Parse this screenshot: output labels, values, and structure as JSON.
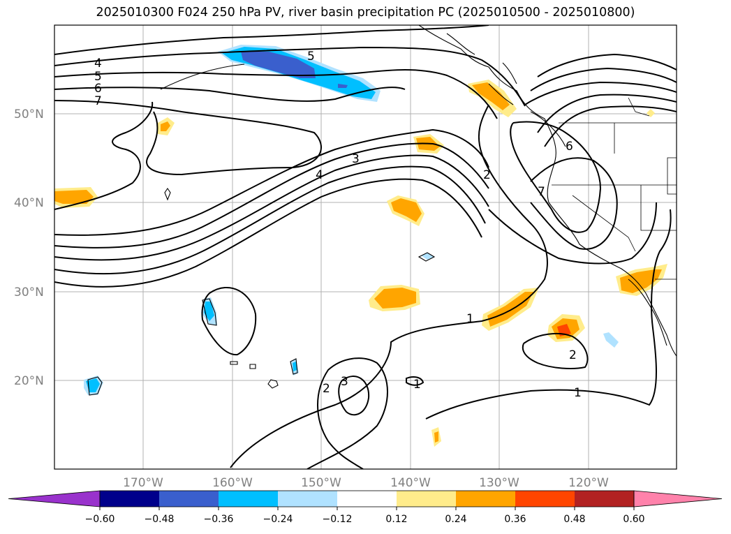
{
  "title": "2025010300 F024 250 hPa PV, river basin precipitation PC (2025010500 - 2025010800)",
  "map": {
    "lat_labels": [
      {
        "label": "50°N",
        "lat": 50
      },
      {
        "label": "40°N",
        "lat": 40
      },
      {
        "label": "30°N",
        "lat": 30
      },
      {
        "label": "20°N",
        "lat": 20
      }
    ],
    "lon_labels": [
      {
        "label": "170°W",
        "lon": -170
      },
      {
        "label": "160°W",
        "lon": -160
      },
      {
        "label": "150°W",
        "lon": -150
      },
      {
        "label": "140°W",
        "lon": -140
      },
      {
        "label": "130°W",
        "lon": -130
      },
      {
        "label": "120°W",
        "lon": -120
      }
    ],
    "pv_contour_labels": [
      "4",
      "5",
      "6",
      "7",
      "5",
      "4",
      "3",
      "2",
      "7",
      "6",
      "1",
      "2",
      "3",
      "2",
      "1",
      "1"
    ]
  },
  "colorbar": {
    "ticks": [
      "−0.60",
      "−0.48",
      "−0.36",
      "−0.24",
      "−0.12",
      "0.12",
      "0.24",
      "0.36",
      "0.48",
      "0.60"
    ],
    "colors": [
      "#9932cc",
      "#00008b",
      "#3a5fcd",
      "#00bfff",
      "#b0e2ff",
      "#ffffff",
      "#ffec8b",
      "#ffa500",
      "#ff4500",
      "#b22222",
      "#ff82ab"
    ]
  }
}
